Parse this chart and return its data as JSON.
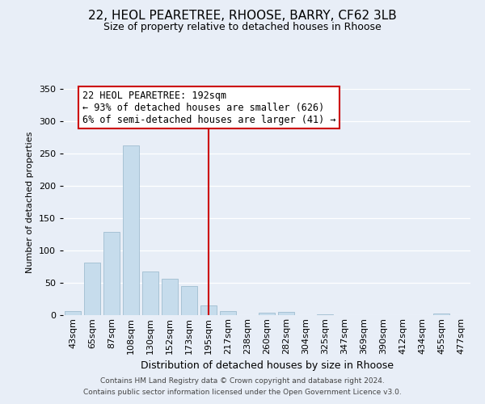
{
  "title": "22, HEOL PEARETREE, RHOOSE, BARRY, CF62 3LB",
  "subtitle": "Size of property relative to detached houses in Rhoose",
  "xlabel": "Distribution of detached houses by size in Rhoose",
  "ylabel": "Number of detached properties",
  "bar_labels": [
    "43sqm",
    "65sqm",
    "87sqm",
    "108sqm",
    "130sqm",
    "152sqm",
    "173sqm",
    "195sqm",
    "217sqm",
    "238sqm",
    "260sqm",
    "282sqm",
    "304sqm",
    "325sqm",
    "347sqm",
    "369sqm",
    "390sqm",
    "412sqm",
    "434sqm",
    "455sqm",
    "477sqm"
  ],
  "bar_values": [
    6,
    81,
    129,
    262,
    67,
    56,
    45,
    15,
    6,
    0,
    4,
    5,
    0,
    1,
    0,
    0,
    0,
    0,
    0,
    2,
    0
  ],
  "bar_color": "#c6dcec",
  "bar_edge_color": "#a0bdd0",
  "vline_x_index": 7,
  "vline_color": "#cc0000",
  "annotation_line1": "22 HEOL PEARETREE: 192sqm",
  "annotation_line2": "← 93% of detached houses are smaller (626)",
  "annotation_line3": "6% of semi-detached houses are larger (41) →",
  "annotation_box_facecolor": "#ffffff",
  "annotation_box_edgecolor": "#cc0000",
  "ylim": [
    0,
    350
  ],
  "yticks": [
    0,
    50,
    100,
    150,
    200,
    250,
    300,
    350
  ],
  "grid_color": "#ffffff",
  "background_color": "#e8eef7",
  "plot_background": "#e8eef7",
  "footer_line1": "Contains HM Land Registry data © Crown copyright and database right 2024.",
  "footer_line2": "Contains public sector information licensed under the Open Government Licence v3.0.",
  "title_fontsize": 11,
  "subtitle_fontsize": 9,
  "ylabel_fontsize": 8,
  "xlabel_fontsize": 9,
  "tick_fontsize": 8,
  "footer_fontsize": 6.5,
  "annotation_fontsize": 8.5
}
